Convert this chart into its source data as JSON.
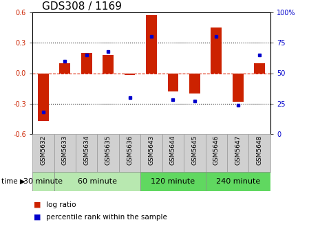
{
  "title": "GDS308 / 1169",
  "samples": [
    "GSM5632",
    "GSM5633",
    "GSM5634",
    "GSM5635",
    "GSM5636",
    "GSM5643",
    "GSM5644",
    "GSM5645",
    "GSM5646",
    "GSM5647",
    "GSM5648"
  ],
  "log_ratio": [
    -0.47,
    0.1,
    0.2,
    0.18,
    -0.02,
    0.57,
    -0.18,
    -0.2,
    0.45,
    -0.28,
    0.1
  ],
  "percentile": [
    18,
    60,
    65,
    68,
    30,
    80,
    28,
    27,
    80,
    24,
    65
  ],
  "groups": [
    {
      "label": "30 minute",
      "start": 0,
      "end": 0,
      "color": "#b8e8b0"
    },
    {
      "label": "60 minute",
      "start": 1,
      "end": 4,
      "color": "#b8e8b0"
    },
    {
      "label": "120 minute",
      "start": 5,
      "end": 7,
      "color": "#60d860"
    },
    {
      "label": "240 minute",
      "start": 8,
      "end": 10,
      "color": "#60d860"
    }
  ],
  "ylim": [
    -0.6,
    0.6
  ],
  "yticks_left": [
    -0.6,
    -0.3,
    0.0,
    0.3,
    0.6
  ],
  "yticks_right_labels": [
    "0",
    "25",
    "50",
    "75",
    "100%"
  ],
  "bar_color": "#cc2200",
  "dot_color": "#0000cc",
  "background_color": "#ffffff",
  "zero_line_color": "#dd2200",
  "grid_line_color": "#111111",
  "xtick_bg": "#d0d0d0",
  "xtick_border": "#999999",
  "title_fontsize": 11,
  "tick_fontsize": 7,
  "bar_width": 0.5,
  "sample_fontsize": 6.5,
  "group_fontsize": 8,
  "legend_fontsize": 7.5,
  "time_fontsize": 7.5
}
